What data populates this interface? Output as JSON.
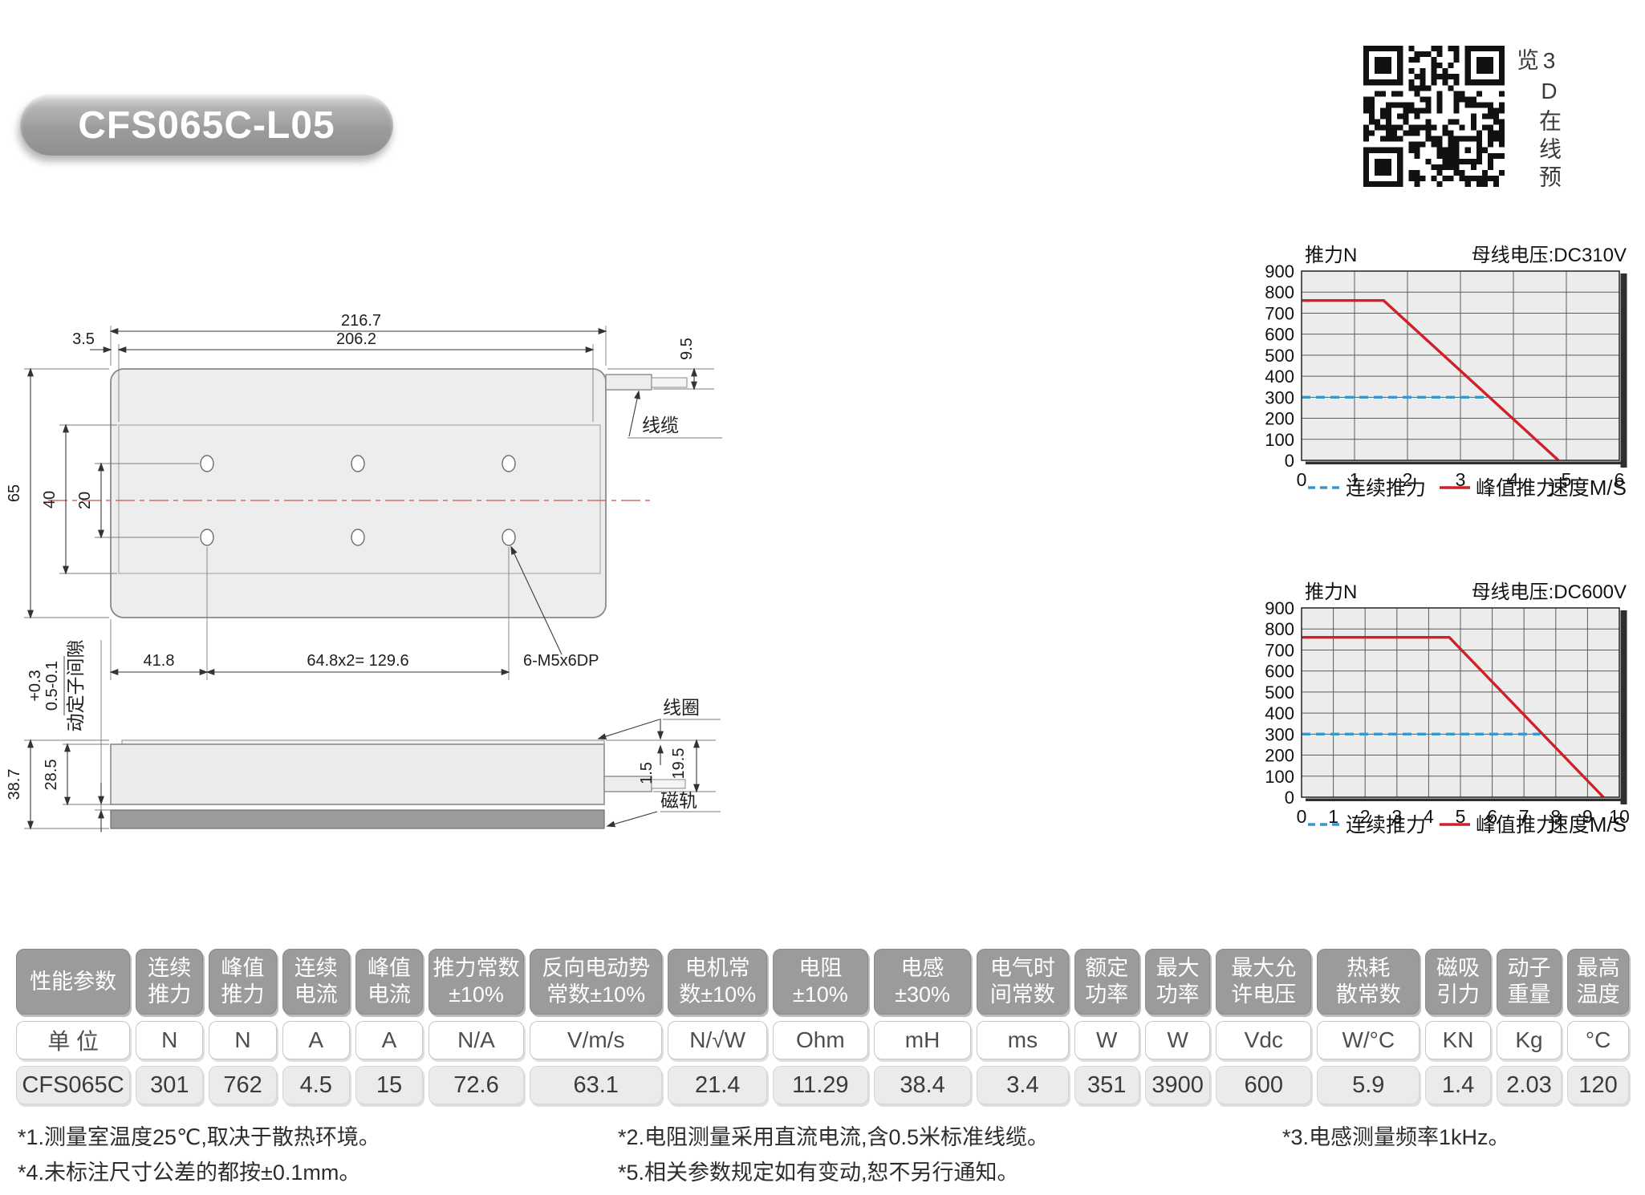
{
  "title": "CFS065C-L05",
  "qr_caption": "3D在线预览",
  "drawings": {
    "top_view": {
      "dim_overall_len": "216.7",
      "dim_mount_len": "206.2",
      "dim_offset": "3.5",
      "dim_cable": "9.5",
      "dim_width": "65",
      "dim_mount_width": "40",
      "dim_hole_span": "20",
      "dim_hole_offset": "41.8",
      "dim_hole_pitch": "64.8x2= 129.6",
      "holes_label": "6-M5x6DP",
      "cable_label": "线缆"
    },
    "side_view": {
      "tol_upper": "+0.3",
      "tol_lower": "0.5-0.1",
      "gap_label": "动定子间隙",
      "dim_total_h": "38.7",
      "dim_coil_h": "28.5",
      "dim_plate": "1.5",
      "dim_cable_h": "19.5",
      "coil_label": "线圈",
      "rail_label": "磁轨"
    }
  },
  "chart_data": [
    {
      "type": "line",
      "title_left": "推力N",
      "title_right": "母线电压:DC310V",
      "xlabel": "速度M/S",
      "xlim": [
        0,
        6
      ],
      "xticks": [
        0,
        1,
        2,
        3,
        4,
        5,
        6
      ],
      "ylim": [
        0,
        900
      ],
      "yticks": [
        0,
        100,
        200,
        300,
        400,
        500,
        600,
        700,
        800,
        900
      ],
      "grid": true,
      "legend_position": "bottom",
      "series": [
        {
          "name": "连续推力",
          "color": "#3598cf",
          "style": "dashed",
          "points": [
            [
              0,
              300
            ],
            [
              3.55,
              300
            ]
          ]
        },
        {
          "name": "峰值推力",
          "color": "#cf2127",
          "style": "solid",
          "points": [
            [
              0,
              760
            ],
            [
              1.55,
              760
            ],
            [
              4.85,
              0
            ]
          ]
        }
      ]
    },
    {
      "type": "line",
      "title_left": "推力N",
      "title_right": "母线电压:DC600V",
      "xlabel": "速度M/S",
      "xlim": [
        0,
        10
      ],
      "xticks": [
        0,
        1,
        2,
        3,
        4,
        5,
        6,
        7,
        8,
        9,
        10
      ],
      "ylim": [
        0,
        900
      ],
      "yticks": [
        0,
        100,
        200,
        300,
        400,
        500,
        600,
        700,
        800,
        900
      ],
      "grid": true,
      "legend_position": "bottom",
      "series": [
        {
          "name": "连续推力",
          "color": "#3598cf",
          "style": "dashed",
          "points": [
            [
              0,
              300
            ],
            [
              7.5,
              300
            ]
          ]
        },
        {
          "name": "峰值推力",
          "color": "#cf2127",
          "style": "solid",
          "points": [
            [
              0,
              760
            ],
            [
              4.65,
              760
            ],
            [
              9.5,
              0
            ]
          ]
        }
      ]
    }
  ],
  "table": {
    "header": [
      "性能参数",
      "连续\n推力",
      "峰值\n推力",
      "连续\n电流",
      "峰值\n电流",
      "推力常数\n±10%",
      "反向电动势\n常数±10%",
      "电机常\n数±10%",
      "电阻\n±10%",
      "电感\n±30%",
      "电气时\n间常数",
      "额定\n功率",
      "最大\n功率",
      "最大允\n许电压",
      "热耗\n散常数",
      "磁吸\n引力",
      "动子\n重量",
      "最高\n温度"
    ],
    "units": [
      "单 位",
      "N",
      "N",
      "A",
      "A",
      "N/A",
      "V/m/s",
      "N/√W",
      "Ohm",
      "mH",
      "ms",
      "W",
      "W",
      "Vdc",
      "W/°C",
      "KN",
      "Kg",
      "°C"
    ],
    "values": [
      "CFS065C",
      "301",
      "762",
      "4.5",
      "15",
      "72.6",
      "63.1",
      "21.4",
      "11.29",
      "38.4",
      "3.4",
      "351",
      "3900",
      "600",
      "5.9",
      "1.4",
      "2.03",
      "120"
    ]
  },
  "footnotes": {
    "col1": [
      "*1.测量室温度25℃,取决于散热环境。",
      "*4.未标注尺寸公差的都按±0.1mm。"
    ],
    "col2": [
      "*2.电阻测量采用直流电流,含0.5米标准线缆。",
      "*5.相关参数规定如有变动,恕不另行通知。"
    ],
    "col3": [
      "*3.电感测量频率1kHz。"
    ]
  },
  "colors": {
    "accent_red": "#cf2127",
    "accent_blue": "#3598cf",
    "header_gray": "#9b9b9b",
    "plot_bg": "#ececec"
  }
}
